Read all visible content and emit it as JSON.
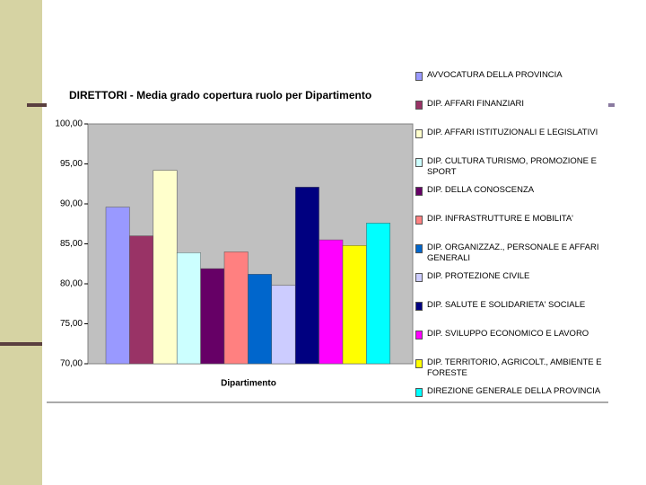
{
  "chart_data": {
    "type": "bar",
    "title": "DIRETTORI - Media grado copertura ruolo per Dipartimento",
    "x_label": "Dipartimento",
    "categories": [
      null
    ],
    "series": [
      {
        "name": "AVVOCATURA DELLA PROVINCIA",
        "color": "#9999ff",
        "values": [
          89.6
        ]
      },
      {
        "name": "DIP. AFFARI FINANZIARI",
        "color": "#993366",
        "values": [
          86.0
        ]
      },
      {
        "name": "DIP. AFFARI ISTITUZIONALI E LEGISLATIVI",
        "color": "#ffffcc",
        "values": [
          94.2
        ]
      },
      {
        "name": "DIP. CULTURA TURISMO, PROMOZIONE E SPORT",
        "color": "#ccffff",
        "values": [
          83.9
        ]
      },
      {
        "name": "DIP. DELLA CONOSCENZA",
        "color": "#660066",
        "values": [
          81.9
        ]
      },
      {
        "name": "DIP. INFRASTRUTTURE E MOBILITA'",
        "color": "#ff8080",
        "values": [
          84.0
        ]
      },
      {
        "name": "DIP. ORGANIZZAZ., PERSONALE E AFFARI GENERALI",
        "color": "#0066cc",
        "values": [
          81.2
        ]
      },
      {
        "name": "DIP. PROTEZIONE CIVILE",
        "color": "#ccccff",
        "values": [
          79.8
        ]
      },
      {
        "name": "DIP. SALUTE E SOLIDARIETA' SOCIALE",
        "color": "#000080",
        "values": [
          92.1
        ]
      },
      {
        "name": "DIP. SVILUPPO ECONOMICO E LAVORO",
        "color": "#ff00ff",
        "values": [
          85.5
        ]
      },
      {
        "name": "DIP. TERRITORIO, AGRICOLT., AMBIENTE E FORESTE",
        "color": "#ffff00",
        "values": [
          84.8
        ]
      },
      {
        "name": "DIREZIONE GENERALE DELLA PROVINCIA",
        "color": "#00ffff",
        "values": [
          87.6
        ]
      }
    ],
    "ylim": [
      70,
      100
    ],
    "yticks": [
      {
        "value": 70,
        "label": "70,00"
      },
      {
        "value": 75,
        "label": "75,00"
      },
      {
        "value": 80,
        "label": "80,00"
      },
      {
        "value": 85,
        "label": "85,00"
      },
      {
        "value": 90,
        "label": "90,00"
      },
      {
        "value": 95,
        "label": "95,00"
      },
      {
        "value": 100,
        "label": "100,00"
      }
    ],
    "grid": false
  }
}
